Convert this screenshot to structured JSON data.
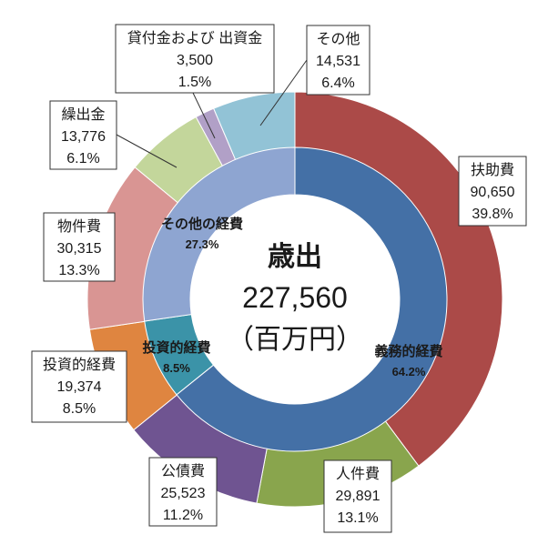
{
  "chart_data": {
    "type": "pie",
    "center_label": {
      "line1": "歳出",
      "line2": "227,560",
      "line3": "（百万円）"
    },
    "inner_ring": [
      {
        "name": "義務的経費",
        "percent": "64.2%",
        "share": 64.2,
        "color": "#4470a6"
      },
      {
        "name": "投資的経費",
        "percent": "8.5%",
        "share": 8.5,
        "color": "#3b93a8"
      },
      {
        "name": "その他の経費",
        "percent": "27.3%",
        "share": 27.3,
        "color": "#8ea5d1"
      }
    ],
    "outer_ring": [
      {
        "name": "扶助費",
        "value": "90,650",
        "percent": "39.8%",
        "share": 39.8,
        "color": "#ab4a48"
      },
      {
        "name": "人件費",
        "value": "29,891",
        "percent": "13.1%",
        "share": 13.1,
        "color": "#89a54d"
      },
      {
        "name": "公債費",
        "value": "25,523",
        "percent": "11.2%",
        "share": 11.2,
        "color": "#6f5491"
      },
      {
        "name": "投資的経費",
        "value": "19,374",
        "percent": "8.5%",
        "share": 8.5,
        "color": "#df8540"
      },
      {
        "name": "物件費",
        "value": "30,315",
        "percent": "13.3%",
        "share": 13.3,
        "color": "#d99593"
      },
      {
        "name": "繰出金",
        "value": "13,776",
        "percent": "6.1%",
        "share": 6.1,
        "color": "#c3d69b"
      },
      {
        "name": "貸付金および 出資金",
        "value": "3,500",
        "percent": "1.5%",
        "share": 1.5,
        "color": "#b1a0c7"
      },
      {
        "name": "その他",
        "value": "14,531",
        "percent": "6.4%",
        "share": 6.4,
        "color": "#92c3d6"
      }
    ]
  }
}
